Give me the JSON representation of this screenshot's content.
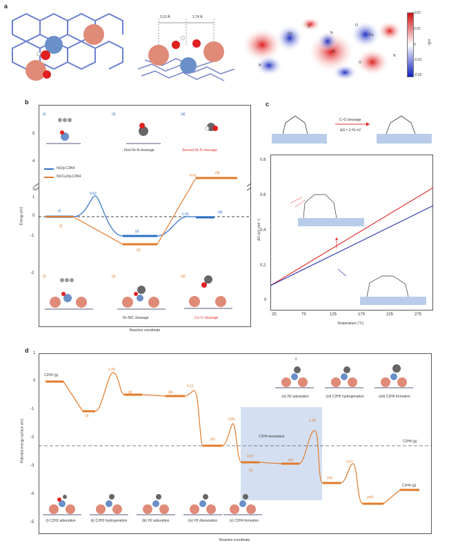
{
  "panels": {
    "a": "a",
    "b": "b",
    "c": "c",
    "d": "d"
  },
  "a": {
    "dist_left": "3.10 Å",
    "dist_right": "2.74 Å",
    "colorbar_ticks": [
      "0.02",
      "0.01",
      "0",
      "-0.01",
      "-0.02"
    ],
    "colorbar_unit": "e/Å³",
    "map_labels": [
      "Cu",
      "O",
      "N",
      "N",
      "O",
      "Cu",
      "N",
      "N",
      "O"
    ]
  },
  "b": {
    "ylabel": "Energy (eV)",
    "xlabel": "Reaction coordinate",
    "legend": [
      "Ni1/g-C3N4",
      "Ni1Cu2/g-C3N4"
    ],
    "top_captions": [
      "(i)",
      "(ii) First Ni–N cleavage",
      "(iii) Second Ni–N cleavage"
    ],
    "top_roman": [
      "(i)",
      "(ii)",
      "(iii)"
    ],
    "top_text": [
      "",
      "First Ni–N cleavage",
      "Second Ni–N cleavage"
    ],
    "bottom_roman": [
      "(i)",
      "(ii)",
      "(iii)"
    ],
    "bottom_text": [
      "",
      "Ni–N/C cleavage",
      "Cu–O cleavage"
    ],
    "yticks": [
      "5",
      "4",
      "3",
      "1",
      "0",
      "-1",
      "-2"
    ],
    "energy_labels": {
      "blue_peak": "0.62",
      "blue_end": "0.06",
      "orange_end": "4.41"
    },
    "level_roman_blue": [
      "(i)",
      "(ii)",
      "(iii)"
    ],
    "level_roman_orange": [
      "(i)",
      "(ii)",
      "(iii)"
    ]
  },
  "c": {
    "arrow_top": "C–O cleavage",
    "arrow_bottom": "ΔG = 2.41 eV",
    "ylabel": "ΔG (eV mol⁻¹)",
    "xlabel": "Temperature (°C)",
    "yticks": [
      "0.8",
      "0.6",
      "0.4",
      "0.2",
      "0"
    ],
    "xticks": [
      "25",
      "75",
      "125",
      "175",
      "225",
      "275"
    ],
    "scheme_labels": [
      "H",
      "C",
      "H",
      "O",
      "Ni",
      "O",
      "Cu",
      "Cu",
      "N",
      "N"
    ]
  },
  "d": {
    "ylabel": "Potential energy surface (eV)",
    "xlabel": "Reaction coordinate",
    "yticks": [
      "1",
      "0",
      "-1",
      "-2",
      "-3",
      "-4",
      "-5"
    ],
    "start_label": "C2H2 (g)",
    "c2h4_label": "C2H4 (g)",
    "end_label": "C2H4 (g)",
    "desorption_label": "C2H4 desorption",
    "energies": [
      "1.20",
      "0.11",
      "0.81",
      "0.67",
      "1.36",
      "0.67"
    ],
    "level_roman": [
      "(i)",
      "(ii)",
      "(iii)",
      "(iv)",
      "(v)",
      "(vi)",
      "(vii)",
      "(viii)"
    ],
    "bottom_captions": [
      "(i) C2H2 adsorption",
      "(ii) C2H3 hydrogenation",
      "(iii) H2 adsorption",
      "(iv) H2 dissociation",
      "(v) C2H4 formation"
    ],
    "top_captions": [
      "(vi) H2 adsorption",
      "(vii) C2H5 hydrogenation",
      "(viii) C2H6 formation"
    ]
  },
  "chart_data": [
    {
      "type": "line",
      "panel": "b",
      "ylabel": "Energy (eV)",
      "xlabel": "Reaction coordinate",
      "ylim": [
        -3,
        5.5
      ],
      "series": [
        {
          "name": "Ni1/g-C3N4",
          "color": "#2a6fc2",
          "states": [
            "(i)",
            "TS",
            "(ii)",
            "(iii)"
          ],
          "values": [
            0,
            0.62,
            -0.7,
            0.06
          ]
        },
        {
          "name": "Ni1Cu2/g-C3N4",
          "color": "#e07a2a",
          "states": [
            "(i)",
            "(ii)",
            "(iii)"
          ],
          "values": [
            0,
            -1.0,
            4.41
          ]
        }
      ]
    },
    {
      "type": "line",
      "panel": "c",
      "xlabel": "Temperature (°C)",
      "ylabel": "ΔG (eV mol⁻¹)",
      "x": [
        25,
        300
      ],
      "series": [
        {
          "color": "#e03030",
          "values": [
            0.08,
            0.64
          ]
        },
        {
          "color": "#2a35b0",
          "values": [
            0.08,
            0.54
          ]
        }
      ],
      "xlim": [
        25,
        300
      ],
      "ylim": [
        0,
        0.85
      ]
    },
    {
      "type": "line",
      "panel": "d",
      "ylabel": "Potential energy surface (eV)",
      "xlabel": "Reaction coordinate",
      "ylim": [
        -5,
        1
      ],
      "states": [
        "C2H2 (g)",
        "(i)",
        "TS",
        "(ii)",
        "(iii)",
        "TS",
        "(iv)",
        "TS",
        "(v)",
        "(vi)",
        "TS",
        "(vii)",
        "TS",
        "(viii)",
        "C2H6 (g)"
      ],
      "values": [
        0,
        -1.0,
        0.2,
        -0.45,
        -0.5,
        -0.39,
        -2.2,
        -1.4,
        -2.8,
        -2.9,
        -1.55,
        -3.5,
        -2.8,
        -4.2,
        -3.7
      ],
      "reference_line": {
        "label": "C2H4 (g)",
        "value": -2.1
      }
    }
  ]
}
